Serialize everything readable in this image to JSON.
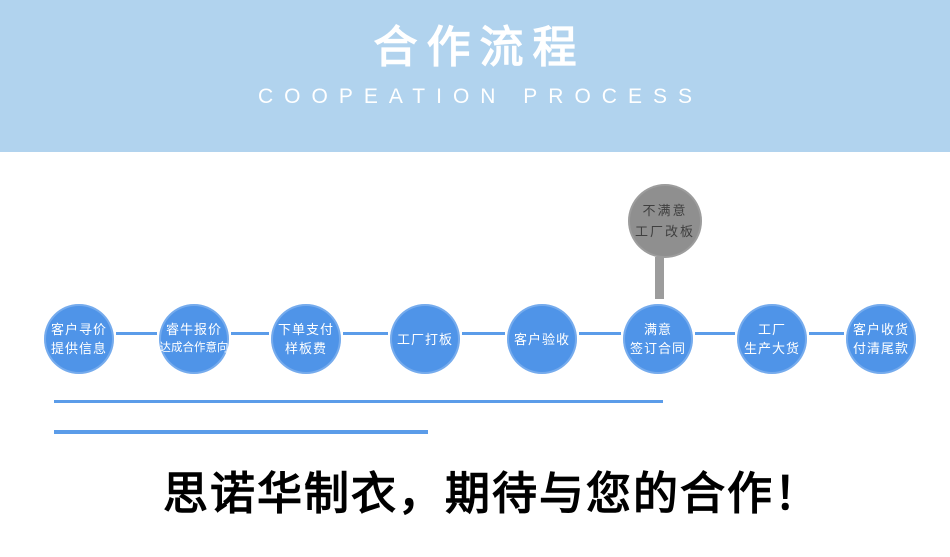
{
  "header": {
    "title": "合作流程",
    "subtitle": "COOPEATION PROCESS"
  },
  "flow": {
    "steps": [
      {
        "lines": [
          "客户寻价",
          "提供信息"
        ]
      },
      {
        "lines": [
          "睿牛报价",
          "达成合作意向"
        ]
      },
      {
        "lines": [
          "下单支付",
          "样板费"
        ]
      },
      {
        "lines": [
          "工厂打板"
        ]
      },
      {
        "lines": [
          "客户验收"
        ]
      },
      {
        "lines": [
          "满意",
          "签订合同"
        ]
      },
      {
        "lines": [
          "工厂",
          "生产大货"
        ]
      },
      {
        "lines": [
          "客户收货",
          "付清尾款"
        ]
      }
    ],
    "reject_node": {
      "lines": [
        "不满意",
        "工厂改板"
      ]
    }
  },
  "footer": {
    "slogan": "思诺华制衣，期待与您的合作！"
  },
  "colors": {
    "band_background": "#b1d3ee",
    "band_text": "#ffffff",
    "step_circle": "#4f94e8",
    "step_text": "#ffffff",
    "connector_line": "#5b9ce9",
    "reject_circle": "#8f8f8f",
    "reject_stem": "#9c9c9c",
    "reject_text": "#3f3f3f",
    "slogan_text": "#000000",
    "page_background": "#ffffff"
  }
}
